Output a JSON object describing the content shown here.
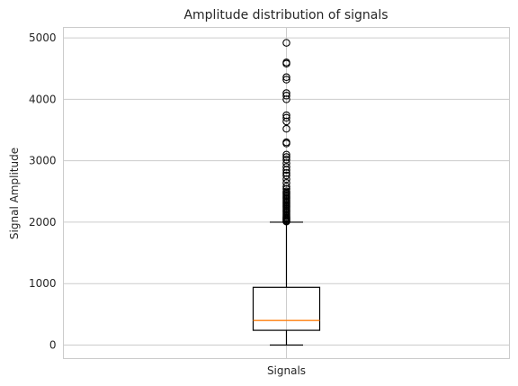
{
  "chart_data": {
    "type": "box",
    "title": "Amplitude distribution of signals",
    "xlabel": "",
    "ylabel": "Signal Amplitude",
    "categories": [
      "Signals"
    ],
    "ylim": [
      -220,
      5170
    ],
    "yticks": [
      0,
      1000,
      2000,
      3000,
      4000,
      5000
    ],
    "grid": true,
    "box": {
      "whisker_low": 0,
      "q1": 240,
      "median": 400,
      "q3": 940,
      "whisker_high": 2000
    },
    "outliers": [
      2010,
      2020,
      2035,
      2050,
      2065,
      2080,
      2100,
      2120,
      2140,
      2160,
      2180,
      2200,
      2220,
      2240,
      2260,
      2280,
      2300,
      2320,
      2340,
      2360,
      2380,
      2400,
      2420,
      2440,
      2460,
      2480,
      2500,
      2540,
      2580,
      2640,
      2700,
      2760,
      2800,
      2850,
      2900,
      2960,
      3020,
      3060,
      3100,
      3280,
      3300,
      3520,
      3640,
      3700,
      3740,
      4000,
      4060,
      4100,
      4320,
      4360,
      4580,
      4600,
      4920
    ]
  },
  "colors": {
    "box": "#000000",
    "median": "#ff7f0e",
    "grid": "#cccccc",
    "frame": "#cccccc",
    "text": "#262626"
  }
}
